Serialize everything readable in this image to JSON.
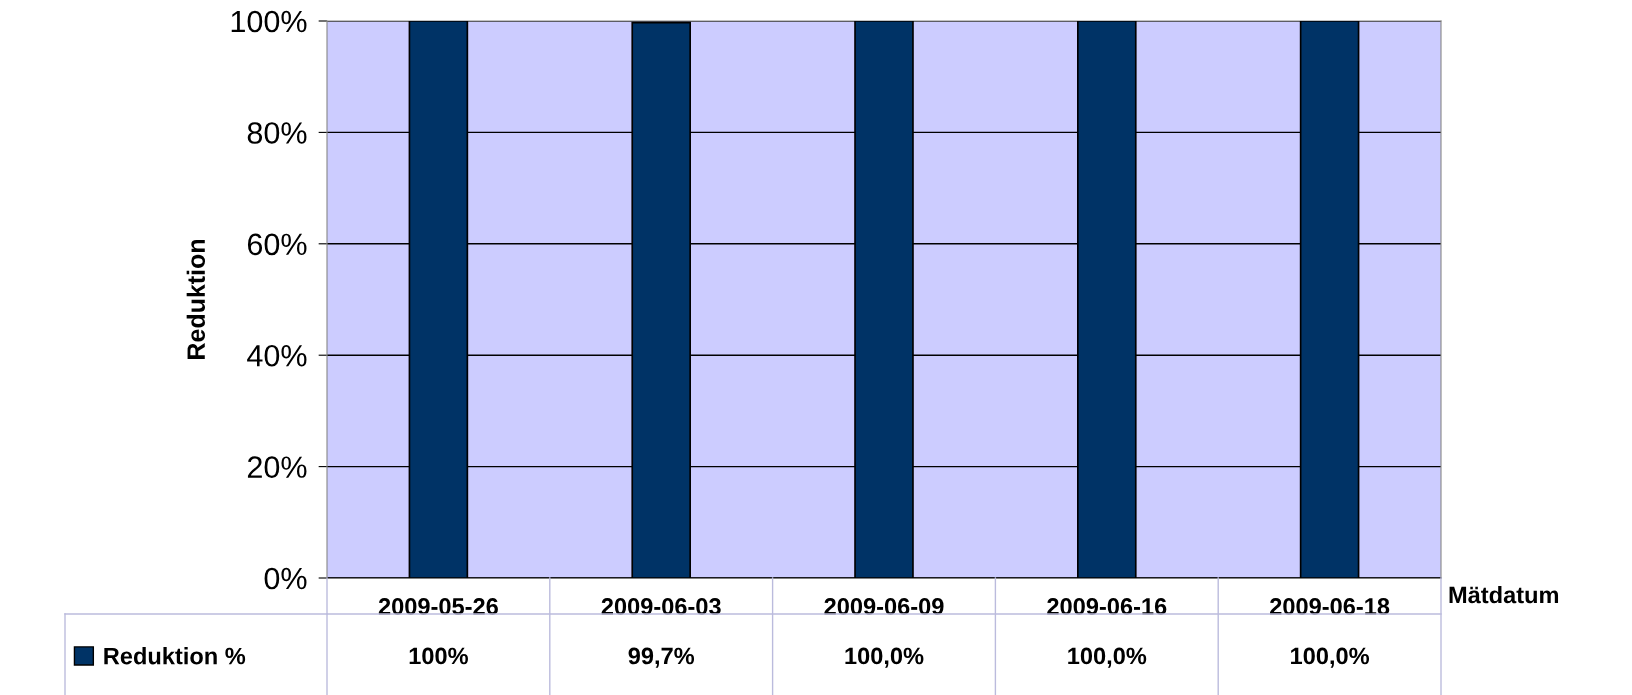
{
  "chart_data": {
    "type": "bar",
    "xlabel": "Mätdatum",
    "ylabel": "Reduktion",
    "categories": [
      "2009-05-26",
      "2009-06-03",
      "2009-06-09",
      "2009-06-16",
      "2009-06-18"
    ],
    "series": [
      {
        "name": "Reduktion %",
        "color": "#003366",
        "values": [
          100,
          99.7,
          100,
          100,
          100
        ],
        "value_labels": [
          "100%",
          "99,7%",
          "100,0%",
          "100,0%",
          "100,0%"
        ]
      }
    ],
    "ylim": [
      0,
      100
    ],
    "yticks": [
      {
        "value": 0,
        "label": "0%"
      },
      {
        "value": 20,
        "label": "20%"
      },
      {
        "value": 40,
        "label": "40%"
      },
      {
        "value": 60,
        "label": "60%"
      },
      {
        "value": 80,
        "label": "80%"
      },
      {
        "value": 100,
        "label": "100%"
      }
    ],
    "grid": "y",
    "legend": "bottom left"
  }
}
